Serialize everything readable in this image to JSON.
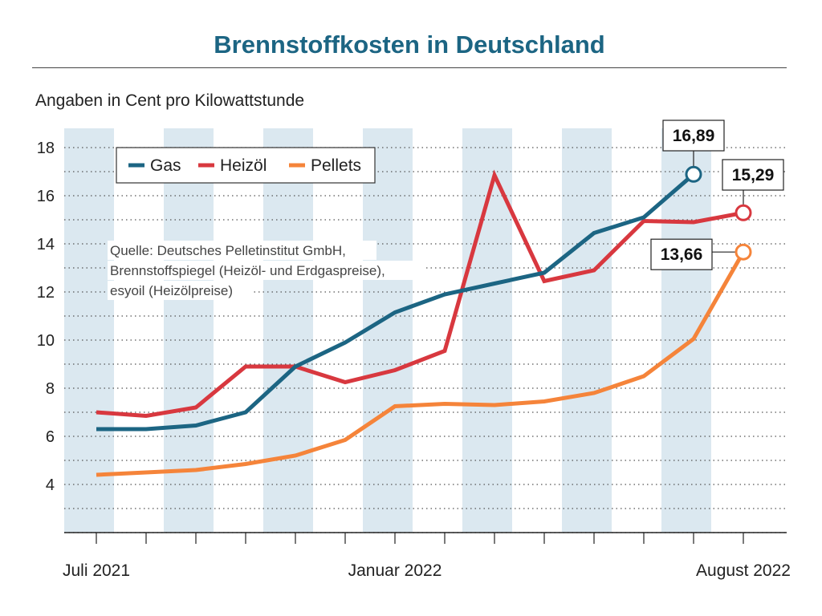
{
  "chart_data": {
    "type": "line",
    "title": "Brennstoffkosten in Deutschland",
    "subtitle": "Angaben in Cent pro Kilowattstunde",
    "x": [
      "Jul 2021",
      "Aug 2021",
      "Sep 2021",
      "Okt 2021",
      "Nov 2021",
      "Dez 2021",
      "Jan 2022",
      "Feb 2022",
      "Mär 2022",
      "Apr 2022",
      "Mai 2022",
      "Jun 2022",
      "Jul 2022",
      "Aug 2022"
    ],
    "x_tick_labels": [
      {
        "index": 0,
        "label": "Juli 2021"
      },
      {
        "index": 6,
        "label": "Januar 2022"
      },
      {
        "index": 13,
        "label": "August 2022"
      }
    ],
    "ylim": [
      2,
      18.8
    ],
    "y_ticks": [
      4,
      6,
      8,
      10,
      12,
      14,
      16,
      18
    ],
    "grid": true,
    "legend_position": "top-left",
    "series": [
      {
        "name": "Gas",
        "color": "#1c6583",
        "values": [
          6.3,
          6.3,
          6.45,
          7.0,
          8.9,
          9.9,
          11.15,
          11.9,
          12.35,
          12.8,
          14.45,
          15.1,
          16.89,
          null
        ]
      },
      {
        "name": "Heizöl",
        "color": "#d8383f",
        "values": [
          7.0,
          6.85,
          7.2,
          8.9,
          8.9,
          8.25,
          8.75,
          9.55,
          16.85,
          12.45,
          12.9,
          14.95,
          14.9,
          15.29
        ]
      },
      {
        "name": "Pellets",
        "color": "#f5843a",
        "values": [
          4.4,
          4.5,
          4.6,
          4.85,
          5.2,
          5.85,
          7.25,
          7.35,
          7.3,
          7.45,
          7.8,
          8.5,
          10.05,
          13.66
        ]
      }
    ],
    "callouts": [
      {
        "series": "Gas",
        "index": 12,
        "label": "16,89"
      },
      {
        "series": "Heizöl",
        "index": 13,
        "label": "15,29"
      },
      {
        "series": "Pellets",
        "index": 13,
        "label": "13,66"
      }
    ],
    "source_lines": [
      "Quelle: Deutsches Pelletinstitut GmbH,",
      "Brennstoffspiegel (Heizöl- und Erdgaspreise),",
      "esyoil (Heizölpreise)"
    ]
  }
}
